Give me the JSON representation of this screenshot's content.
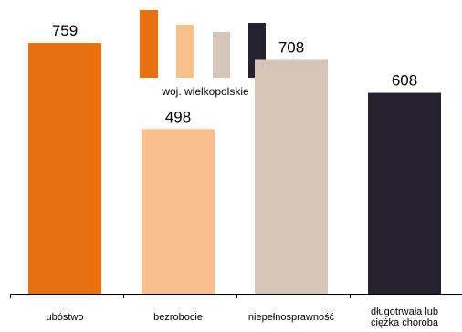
{
  "chart_data": {
    "type": "bar",
    "title": "",
    "categories": [
      "ubóstwo",
      "bezrobocie",
      "niepełnosprawność",
      "długotrwała lub\nciężka choroba"
    ],
    "series": [
      {
        "name": "woj. wielkopolskie",
        "values": [
          759,
          498,
          708,
          608
        ]
      }
    ],
    "data_labels": [
      "759",
      "498",
      "708",
      "608"
    ],
    "bar_colors": [
      "#E8700F",
      "#F9C08F",
      "#D5C4B8",
      "#25222E"
    ],
    "ylim": [
      0,
      870
    ],
    "grid": false,
    "legend_position": "top"
  }
}
